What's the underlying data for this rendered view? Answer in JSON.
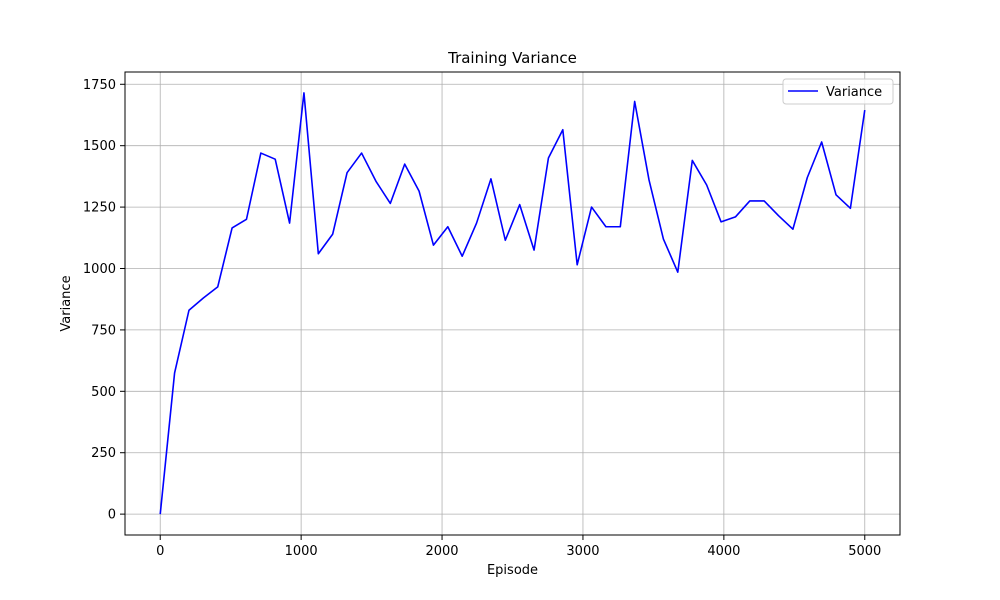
{
  "chart_data": {
    "type": "line",
    "title": "Training Variance",
    "xlabel": "Episode",
    "ylabel": "Variance",
    "xlim": [
      -250,
      5250
    ],
    "ylim": [
      -85,
      1800
    ],
    "xticks": [
      0,
      1000,
      2000,
      3000,
      4000,
      5000
    ],
    "yticks": [
      0,
      250,
      500,
      750,
      1000,
      1250,
      1500,
      1750
    ],
    "grid": true,
    "legend_position": "top-right",
    "series": [
      {
        "name": "Variance",
        "color": "#0000ff",
        "x": [
          0,
          102,
          204,
          306,
          408,
          510,
          612,
          714,
          816,
          918,
          1020,
          1122,
          1224,
          1326,
          1429,
          1531,
          1633,
          1735,
          1837,
          1939,
          2041,
          2143,
          2245,
          2347,
          2449,
          2551,
          2653,
          2755,
          2857,
          2959,
          3061,
          3163,
          3265,
          3367,
          3469,
          3571,
          3673,
          3776,
          3878,
          3980,
          4082,
          4184,
          4286,
          4388,
          4490,
          4592,
          4694,
          4796,
          4898,
          5000
        ],
        "values": [
          0,
          575,
          830,
          880,
          925,
          1165,
          1200,
          1470,
          1445,
          1185,
          1715,
          1060,
          1140,
          1390,
          1470,
          1355,
          1265,
          1425,
          1315,
          1095,
          1170,
          1050,
          1185,
          1365,
          1115,
          1260,
          1075,
          1450,
          1565,
          1015,
          1250,
          1170,
          1170,
          1680,
          1360,
          1120,
          985,
          1440,
          1340,
          1190,
          1210,
          1275,
          1275,
          1215,
          1160,
          1370,
          1515,
          1300,
          1245,
          1645
        ]
      }
    ]
  }
}
